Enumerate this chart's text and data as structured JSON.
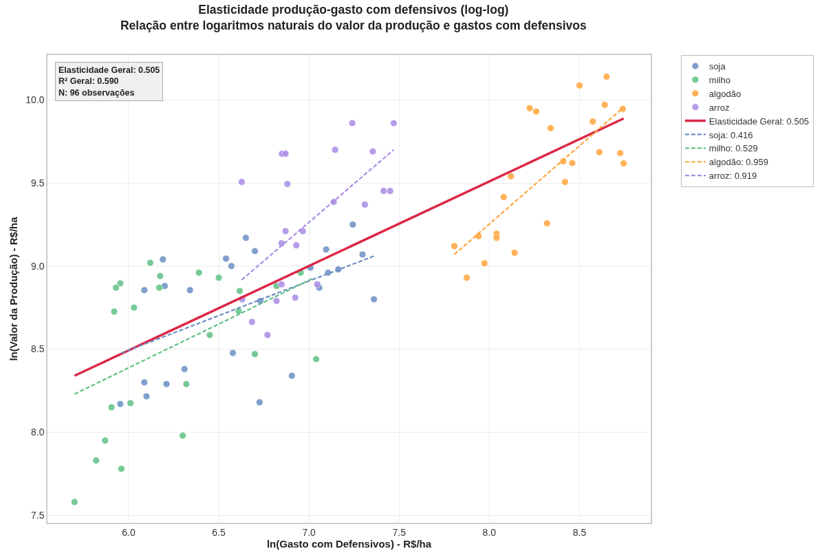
{
  "chart_data": {
    "type": "scatter",
    "title": "Elasticidade produção-gasto com defensivos (log-log)",
    "subtitle": "Relação entre logaritmos naturais do valor da produção e gastos com defensivos",
    "xlabel": "ln(Gasto com Defensivos) - R$/ha",
    "ylabel": "ln(Valor da Produção) - R$/ha",
    "annotations": [
      "Elasticidade Geral: 0.505",
      "R² Geral: 0.590",
      "N: 96 observações"
    ],
    "xlim": [
      5.55,
      8.895
    ],
    "xticks": [
      {
        "value": 6,
        "label": "6.0"
      },
      6.5,
      {
        "value": 7,
        "label": "7.0"
      },
      7.5,
      {
        "value": 8,
        "label": "8.0"
      },
      8.5
    ],
    "ylim": [
      7.455,
      10.27
    ],
    "yticks": [
      7.5,
      {
        "value": 8,
        "label": "8.0"
      },
      8.5,
      {
        "value": 9,
        "label": "9.0"
      },
      9.5,
      {
        "value": 10,
        "label": "10.0"
      }
    ],
    "grid": true,
    "legend": "top right",
    "marker": "circle",
    "series": [
      {
        "name": "soja",
        "color": "#6b8fc4",
        "x": [
          6.087,
          6.19,
          6.2,
          6.34,
          6.54,
          6.57,
          6.65,
          6.7,
          6.73,
          7.095,
          7.106,
          7.057,
          7.163,
          7.243,
          7.297,
          7.36,
          7.008,
          6.905,
          6.578,
          6.726,
          6.31,
          6.21,
          6.087,
          6.099,
          5.954
        ],
        "values": [
          8.855,
          9.04,
          8.88,
          8.855,
          9.045,
          9.0,
          9.17,
          9.09,
          8.79,
          9.1,
          8.96,
          8.87,
          8.98,
          9.25,
          9.07,
          8.8,
          8.99,
          8.34,
          8.477,
          8.18,
          8.38,
          8.29,
          8.3,
          8.216,
          8.17
        ]
      },
      {
        "name": "milho",
        "color": "#5fc184",
        "x": [
          6.12,
          6.175,
          6.39,
          6.5,
          5.954,
          5.93,
          6.17,
          5.92,
          6.03,
          6.616,
          6.82,
          6.954,
          6.61,
          6.45,
          6.7,
          7.04,
          6.32,
          6.01,
          5.905,
          6.3,
          5.87,
          5.82,
          5.96,
          5.7
        ],
        "values": [
          9.02,
          8.94,
          8.96,
          8.93,
          8.896,
          8.87,
          8.87,
          8.726,
          8.75,
          8.85,
          8.88,
          8.96,
          8.73,
          8.585,
          8.47,
          8.44,
          8.29,
          8.175,
          8.15,
          7.98,
          7.95,
          7.83,
          7.78,
          7.58
        ]
      },
      {
        "name": "algodão",
        "color": "#ffa53b",
        "x": [
          8.65,
          8.5,
          8.64,
          8.224,
          8.26,
          8.74,
          8.34,
          8.574,
          8.61,
          8.726,
          8.745,
          8.41,
          8.46,
          8.42,
          8.12,
          8.08,
          8.32,
          7.94,
          8.04,
          8.04,
          7.806,
          8.14,
          7.973,
          7.875
        ],
        "values": [
          10.14,
          10.087,
          9.97,
          9.95,
          9.93,
          9.946,
          9.83,
          9.87,
          9.685,
          9.68,
          9.618,
          9.63,
          9.62,
          9.506,
          9.54,
          9.415,
          9.257,
          9.18,
          9.195,
          9.17,
          9.12,
          9.08,
          9.017,
          8.93
        ]
      },
      {
        "name": "arroz",
        "color": "#a98ae6",
        "x": [
          7.24,
          7.47,
          6.85,
          6.87,
          7.145,
          7.354,
          6.88,
          7.414,
          7.45,
          7.137,
          7.31,
          6.87,
          6.966,
          6.848,
          6.93,
          6.848,
          7.046,
          6.924,
          6.82,
          6.627,
          6.63,
          6.684,
          6.77
        ],
        "values": [
          9.86,
          9.86,
          9.676,
          9.676,
          9.7,
          9.69,
          9.494,
          9.452,
          9.452,
          9.386,
          9.37,
          9.21,
          9.21,
          9.137,
          9.125,
          8.89,
          8.89,
          8.81,
          8.79,
          9.506,
          8.8,
          8.664,
          8.585
        ]
      },
      {
        "name": "Elasticidade Geral: 0.505",
        "type": "line",
        "marker": "none",
        "line_style": "solid",
        "color": "#dc2848",
        "x": [
          5.7,
          8.745
        ],
        "values": [
          8.34,
          9.888
        ]
      },
      {
        "name": "soja: 0.416",
        "type": "line",
        "marker": "none",
        "line_style": "dashed",
        "color": "#6b8fc4",
        "x": [
          5.96,
          7.36
        ],
        "values": [
          8.477,
          9.06
        ]
      },
      {
        "name": "milho: 0.529",
        "type": "line",
        "marker": "none",
        "line_style": "dashed",
        "color": "#5fc184",
        "x": [
          5.7,
          7.03
        ],
        "values": [
          8.23,
          8.93
        ]
      },
      {
        "name": "algodão: 0.959",
        "type": "line",
        "marker": "none",
        "line_style": "dashed",
        "color": "#ffa53b",
        "x": [
          7.806,
          8.74
        ],
        "values": [
          9.07,
          9.95
        ]
      },
      {
        "name": "arroz: 0.919",
        "type": "line",
        "marker": "none",
        "line_style": "dashed",
        "color": "#a98ae6",
        "x": [
          6.627,
          7.47
        ],
        "values": [
          8.917,
          9.7
        ]
      }
    ]
  }
}
